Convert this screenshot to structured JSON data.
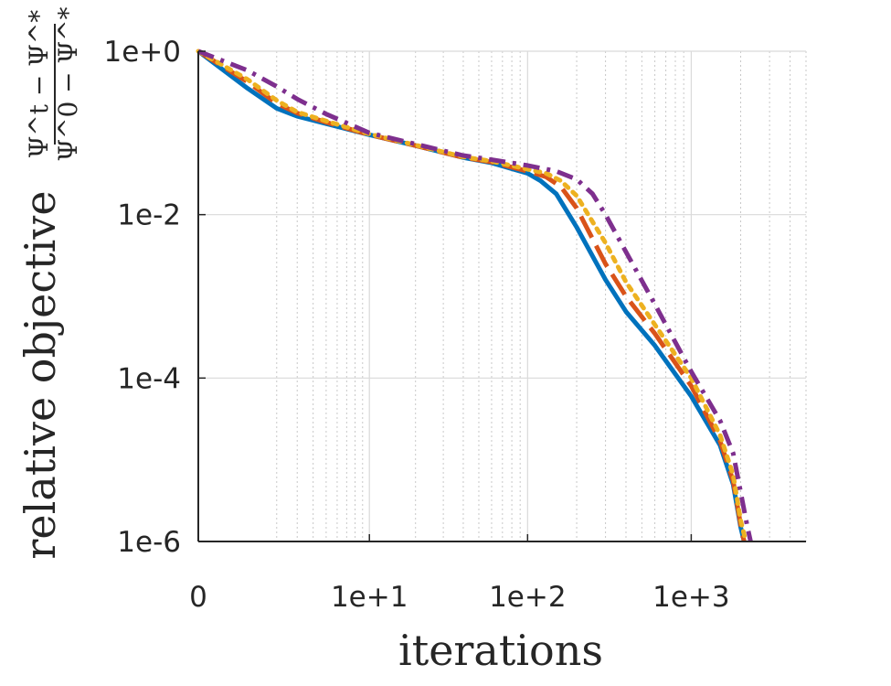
{
  "chart_data": {
    "type": "line",
    "xlabel": "iterations",
    "ylabel": "relative objective",
    "ylabel_fraction": {
      "numerator": "Ψ^t − Ψ^*",
      "denominator": "Ψ^0 − Ψ^*"
    },
    "x_scale": "log (shifted, x+1)",
    "y_scale": "log",
    "xlim": [
      0,
      5000
    ],
    "ylim": [
      1e-06,
      1
    ],
    "grid": true,
    "x_ticks": [
      {
        "value": 0,
        "label": "0"
      },
      {
        "value": 10,
        "label": "1e+1"
      },
      {
        "value": 100,
        "label": "1e+2"
      },
      {
        "value": 1000,
        "label": "1e+3"
      }
    ],
    "y_ticks": [
      {
        "value": 1,
        "label": "1e+0"
      },
      {
        "value": 0.01,
        "label": "1e-2"
      },
      {
        "value": 0.0001,
        "label": "1e-4"
      },
      {
        "value": 1e-06,
        "label": "1e-6"
      }
    ],
    "series": [
      {
        "color": "#0072bd",
        "dash": "solid",
        "x": [
          0,
          1,
          2,
          3,
          5,
          10,
          20,
          40,
          60,
          100,
          120,
          150,
          200,
          300,
          400,
          600,
          1000,
          1500,
          1800,
          2000,
          2100
        ],
        "y": [
          1,
          0.35,
          0.2,
          0.16,
          0.13,
          0.095,
          0.07,
          0.05,
          0.043,
          0.032,
          0.026,
          0.018,
          0.007,
          0.0016,
          0.00065,
          0.00025,
          6e-05,
          1.5e-05,
          5e-06,
          1.5e-06,
          1e-06
        ]
      },
      {
        "color": "#d95319",
        "dash": "long-dash",
        "x": [
          0,
          1,
          2,
          3,
          5,
          10,
          20,
          40,
          60,
          100,
          130,
          160,
          200,
          300,
          400,
          600,
          1000,
          1500,
          1800,
          2000,
          2100
        ],
        "y": [
          1,
          0.42,
          0.23,
          0.175,
          0.135,
          0.095,
          0.07,
          0.05,
          0.044,
          0.034,
          0.029,
          0.022,
          0.012,
          0.0025,
          0.001,
          0.00035,
          8e-05,
          1.7e-05,
          5.5e-06,
          1.6e-06,
          1e-06
        ]
      },
      {
        "color": "#edb120",
        "dash": "dotted",
        "x": [
          0,
          1,
          2,
          3,
          5,
          10,
          20,
          40,
          60,
          100,
          130,
          160,
          200,
          300,
          400,
          600,
          1000,
          1500,
          1800,
          2000,
          2150
        ],
        "y": [
          1,
          0.45,
          0.25,
          0.18,
          0.14,
          0.097,
          0.071,
          0.051,
          0.045,
          0.036,
          0.032,
          0.026,
          0.017,
          0.0045,
          0.0015,
          0.00045,
          0.0001,
          2e-05,
          6.5e-06,
          1.8e-06,
          1e-06
        ]
      },
      {
        "color": "#7e2f8e",
        "dash": "dash-dot",
        "x": [
          0,
          1,
          2,
          3,
          5,
          10,
          20,
          40,
          60,
          100,
          150,
          200,
          250,
          300,
          400,
          600,
          1000,
          1500,
          1800,
          2000,
          2200,
          2300
        ],
        "y": [
          1,
          0.58,
          0.37,
          0.26,
          0.17,
          0.1,
          0.073,
          0.053,
          0.047,
          0.04,
          0.034,
          0.027,
          0.018,
          0.01,
          0.0035,
          0.0008,
          0.00012,
          3e-05,
          1.2e-05,
          4e-06,
          1.5e-06,
          1e-06
        ]
      }
    ]
  }
}
